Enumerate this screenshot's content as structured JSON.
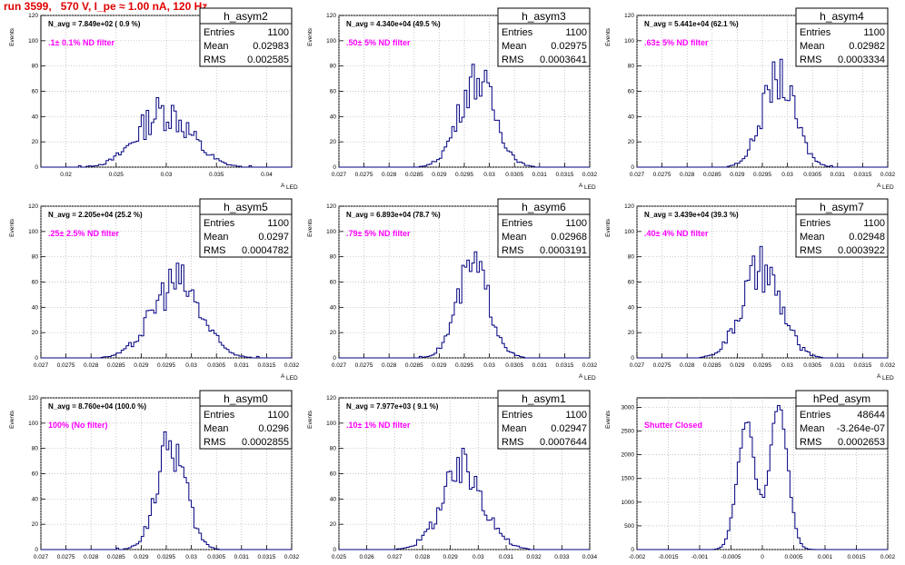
{
  "title": "run 3599,   570 V, I_pe ≈ 1.00 nA, 120 Hz",
  "stat_labels": {
    "entries": "Entries",
    "mean": "Mean",
    "rms": "RMS"
  },
  "axis_label_y": "Events",
  "axis_label_x_main": "A",
  "axis_label_x_sub": "LED",
  "colors": {
    "hist": "#000080",
    "filter": "#ff00ff",
    "title": "#e00000",
    "grid": "#b0b0b0"
  },
  "chart_data": [
    {
      "type": "bar",
      "name": "h_asym2",
      "navg": "N_avg = 7.849e+02 ( 0.9 %)",
      "filter": ".1± 0.1% ND filter",
      "entries": "1100",
      "mean": "0.02983",
      "rms": "0.002585",
      "xlim": [
        0.0175,
        0.0425
      ],
      "ylim": [
        0,
        120
      ],
      "xticks": [
        "0.02",
        "0.025",
        "0.03",
        "0.035",
        "0.04"
      ],
      "xtickvals": [
        0.02,
        0.025,
        0.03,
        0.035,
        0.04
      ],
      "yticks": [
        "0",
        "20",
        "40",
        "60",
        "80",
        "100",
        "120"
      ],
      "peak": 44,
      "center": 0.0298,
      "sigma": 0.0026,
      "noise": 0.35
    },
    {
      "type": "bar",
      "name": "h_asym3",
      "navg": "N_avg = 4.340e+04 (49.5 %)",
      "filter": ".50± 5% ND filter",
      "entries": "1100",
      "mean": "0.02975",
      "rms": "0.0003641",
      "xlim": [
        0.027,
        0.032
      ],
      "ylim": [
        0,
        120
      ],
      "xticks": [
        "0.027",
        "0.0275",
        "0.028",
        "0.0285",
        "0.029",
        "0.0295",
        "0.03",
        "0.0305",
        "0.031",
        "0.0315",
        "0.032"
      ],
      "xtickvals": [
        0.027,
        0.0275,
        0.028,
        0.0285,
        0.029,
        0.0295,
        0.03,
        0.0305,
        0.031,
        0.0315,
        0.032
      ],
      "yticks": [
        "0",
        "20",
        "40",
        "60",
        "80",
        "100",
        "120"
      ],
      "peak": 70,
      "center": 0.02975,
      "sigma": 0.00036,
      "noise": 0.25
    },
    {
      "type": "bar",
      "name": "h_asym4",
      "navg": "N_avg = 5.441e+04 (62.1 %)",
      "filter": ".63± 5% ND filter",
      "entries": "1100",
      "mean": "0.02982",
      "rms": "0.0003334",
      "xlim": [
        0.027,
        0.032
      ],
      "ylim": [
        0,
        120
      ],
      "xticks": [
        "0.027",
        "0.0275",
        "0.028",
        "0.0285",
        "0.029",
        "0.0295",
        "0.03",
        "0.0305",
        "0.031",
        "0.0315",
        "0.032"
      ],
      "xtickvals": [
        0.027,
        0.0275,
        0.028,
        0.0285,
        0.029,
        0.0295,
        0.03,
        0.0305,
        0.031,
        0.0315,
        0.032
      ],
      "yticks": [
        "0",
        "20",
        "40",
        "60",
        "80",
        "100",
        "120"
      ],
      "peak": 70,
      "center": 0.02982,
      "sigma": 0.00033,
      "noise": 0.25
    },
    {
      "type": "bar",
      "name": "h_asym5",
      "navg": "N_avg = 2.205e+04 (25.2 %)",
      "filter": ".25± 2.5% ND filter",
      "entries": "1100",
      "mean": "0.0297",
      "rms": "0.0004782",
      "xlim": [
        0.027,
        0.032
      ],
      "ylim": [
        0,
        120
      ],
      "xticks": [
        "0.027",
        "0.0275",
        "0.028",
        "0.0285",
        "0.029",
        "0.0295",
        "0.03",
        "0.0305",
        "0.031",
        "0.0315",
        "0.032"
      ],
      "xtickvals": [
        0.027,
        0.0275,
        0.028,
        0.0285,
        0.029,
        0.0295,
        0.03,
        0.0305,
        0.031,
        0.0315,
        0.032
      ],
      "yticks": [
        "0",
        "20",
        "40",
        "60",
        "80",
        "100",
        "120"
      ],
      "peak": 60,
      "center": 0.0297,
      "sigma": 0.00048,
      "noise": 0.3
    },
    {
      "type": "bar",
      "name": "h_asym6",
      "navg": "N_avg = 6.893e+04 (78.7 %)",
      "filter": ".79± 5% ND filter",
      "entries": "1100",
      "mean": "0.02968",
      "rms": "0.0003191",
      "xlim": [
        0.027,
        0.032
      ],
      "ylim": [
        0,
        120
      ],
      "xticks": [
        "0.027",
        "0.0275",
        "0.028",
        "0.0285",
        "0.029",
        "0.0295",
        "0.03",
        "0.0305",
        "0.031",
        "0.0315",
        "0.032"
      ],
      "xtickvals": [
        0.027,
        0.0275,
        0.028,
        0.0285,
        0.029,
        0.0295,
        0.03,
        0.0305,
        0.031,
        0.0315,
        0.032
      ],
      "yticks": [
        "0",
        "20",
        "40",
        "60",
        "80",
        "100",
        "120"
      ],
      "peak": 72,
      "center": 0.02968,
      "sigma": 0.00032,
      "noise": 0.25
    },
    {
      "type": "bar",
      "name": "h_asym7",
      "navg": "N_avg = 3.439e+04 (39.3 %)",
      "filter": ".40± 4% ND filter",
      "entries": "1100",
      "mean": "0.02948",
      "rms": "0.0003922",
      "xlim": [
        0.027,
        0.032
      ],
      "ylim": [
        0,
        120
      ],
      "xticks": [
        "0.027",
        "0.0275",
        "0.028",
        "0.0285",
        "0.029",
        "0.0295",
        "0.03",
        "0.0305",
        "0.031",
        "0.0315",
        "0.032"
      ],
      "xtickvals": [
        0.027,
        0.0275,
        0.028,
        0.0285,
        0.029,
        0.0295,
        0.03,
        0.0305,
        0.031,
        0.0315,
        0.032
      ],
      "yticks": [
        "0",
        "20",
        "40",
        "60",
        "80",
        "100",
        "120"
      ],
      "peak": 68,
      "center": 0.02948,
      "sigma": 0.00039,
      "noise": 0.3
    },
    {
      "type": "bar",
      "name": "h_asym0",
      "navg": "N_avg = 8.760e+04 (100.0 %)",
      "filter": "100% (No filter)",
      "entries": "1100",
      "mean": "0.0296",
      "rms": "0.0002855",
      "xlim": [
        0.027,
        0.032
      ],
      "ylim": [
        0,
        120
      ],
      "xticks": [
        "0.027",
        "0.0275",
        "0.028",
        "0.0285",
        "0.029",
        "0.0295",
        "0.03",
        "0.0305",
        "0.031",
        "0.0315",
        "0.032"
      ],
      "xtickvals": [
        0.027,
        0.0275,
        0.028,
        0.0285,
        0.029,
        0.0295,
        0.03,
        0.0305,
        0.031,
        0.0315,
        0.032
      ],
      "yticks": [
        "0",
        "20",
        "40",
        "60",
        "80",
        "100",
        "120"
      ],
      "peak": 82,
      "center": 0.0296,
      "sigma": 0.00029,
      "noise": 0.25
    },
    {
      "type": "bar",
      "name": "h_asym1",
      "navg": "N_avg = 7.977e+03 ( 9.1 %)",
      "filter": ".10± 1% ND filter",
      "entries": "1100",
      "mean": "0.02947",
      "rms": "0.0007644",
      "xlim": [
        0.025,
        0.034
      ],
      "ylim": [
        0,
        120
      ],
      "xticks": [
        "0.025",
        "0.026",
        "0.027",
        "0.028",
        "0.029",
        "0.03",
        "0.031",
        "0.032",
        "0.033",
        "0.034"
      ],
      "xtickvals": [
        0.025,
        0.026,
        0.027,
        0.028,
        0.029,
        0.03,
        0.031,
        0.032,
        0.033,
        0.034
      ],
      "yticks": [
        "0",
        "20",
        "40",
        "60",
        "80",
        "100",
        "120"
      ],
      "peak": 62,
      "center": 0.02947,
      "sigma": 0.00076,
      "noise": 0.3
    },
    {
      "type": "bar",
      "name": "hPed_asym",
      "navg": "",
      "filter": "Shutter Closed",
      "entries": "48644",
      "mean": "-3.264e-07",
      "rms": "0.0002653",
      "xlim": [
        -0.002,
        0.002
      ],
      "ylim": [
        0,
        3200
      ],
      "xticks": [
        "-0.002",
        "-0.0015",
        "-0.001",
        "-0.0005",
        "0",
        "0.0005",
        "0.001",
        "0.0015",
        "0.002"
      ],
      "xtickvals": [
        -0.002,
        -0.0015,
        -0.001,
        -0.0005,
        0,
        0.0005,
        0.001,
        0.0015,
        0.002
      ],
      "yticks": [
        "0",
        "500",
        "1000",
        "1500",
        "2000",
        "2500",
        "3000"
      ],
      "peak": 3050,
      "center": 0,
      "sigma": 0.00026,
      "noise": 0.06,
      "bimodal": true
    }
  ]
}
